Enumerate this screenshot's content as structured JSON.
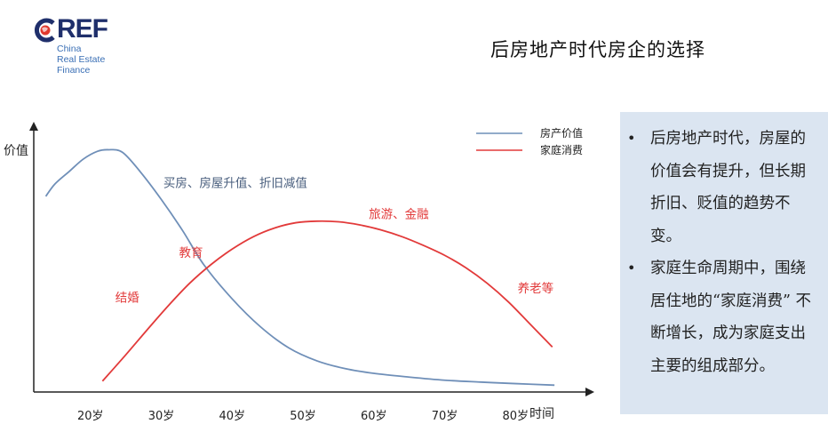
{
  "logo": {
    "brand": "CREF",
    "brand_rest": "REF",
    "lines": [
      "China",
      "Real Estate",
      "Finance"
    ]
  },
  "title": "后房地产时代房企的选择",
  "notes": [
    "后房地产时代，房屋的价值会有提升，但长期折旧、贬值的趋势不变。",
    "家庭生命周期中，围绕居住地的“家庭消费” 不断增长，成为家庭支出主要的组成部分。"
  ],
  "chart_data": {
    "type": "line",
    "ylabel": "价值",
    "xlabel": "时间",
    "categories": [
      "20岁",
      "30岁",
      "40岁",
      "50岁",
      "60岁",
      "70岁",
      "80岁"
    ],
    "series": [
      {
        "name": "房产价值",
        "color": "#6f8fb8",
        "x": [
          13.7,
          15,
          17,
          19,
          21,
          22.5,
          24.5,
          27,
          30,
          33,
          36,
          40,
          44,
          48,
          52,
          56,
          60,
          65,
          70,
          75,
          80,
          85.5
        ],
        "y": [
          6.3,
          6.7,
          7.1,
          7.5,
          7.75,
          7.8,
          7.72,
          7.1,
          6.2,
          5.2,
          4.1,
          3.0,
          2.1,
          1.42,
          1.0,
          0.75,
          0.6,
          0.48,
          0.38,
          0.32,
          0.27,
          0.22
        ]
      },
      {
        "name": "家庭消费",
        "color": "#e23a3a",
        "x": [
          21.7,
          25,
          28,
          31,
          34,
          37,
          40,
          43,
          46,
          49,
          52,
          55,
          58,
          61,
          64,
          67,
          70,
          73,
          76,
          79,
          82,
          85.2
        ],
        "y": [
          0.35,
          1.2,
          2.0,
          2.78,
          3.5,
          4.1,
          4.6,
          5.0,
          5.28,
          5.45,
          5.5,
          5.48,
          5.38,
          5.22,
          5.0,
          4.72,
          4.4,
          4.0,
          3.5,
          2.9,
          2.2,
          1.45
        ]
      }
    ],
    "annotations": [
      {
        "text": "买房、房屋升值、折旧减值",
        "x": 30.3,
        "y": 6.6,
        "color": "#4a5f7e"
      },
      {
        "text": "旅游、金融",
        "x": 59.3,
        "y": 5.6,
        "color": "#e23a3a"
      },
      {
        "text": "教育",
        "x": 32.5,
        "y": 4.35,
        "color": "#e23a3a"
      },
      {
        "text": "结婚",
        "x": 23.5,
        "y": 2.9,
        "color": "#e23a3a"
      },
      {
        "text": "养老等",
        "x": 80.3,
        "y": 3.2,
        "color": "#e23a3a"
      }
    ],
    "legend_position": "top-right",
    "xlim": [
      12,
      90
    ],
    "ylim": [
      0,
      8.5
    ],
    "grid": false
  }
}
